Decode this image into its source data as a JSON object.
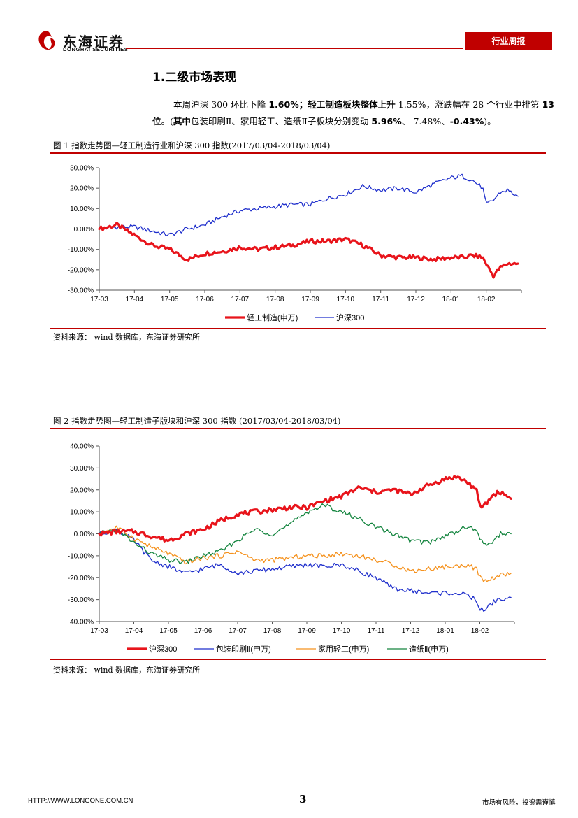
{
  "header": {
    "company_cn": "东海证券",
    "company_en": "DONGHAI SECURITIES",
    "report_type": "行业周报"
  },
  "section": {
    "title": "1.二级市场表现",
    "paragraph_parts": [
      {
        "text": "本周沪深 300 环比下降 ",
        "bold": false
      },
      {
        "text": "1.60%；轻工制造板块整体上升",
        "bold": true
      },
      {
        "text": " 1.55%，涨跌幅在 28 个行业中排第 ",
        "bold": false
      },
      {
        "text": "13 位",
        "bold": true
      },
      {
        "text": "。(",
        "bold": false
      },
      {
        "text": "其中",
        "bold": true
      },
      {
        "text": "包装印刷Ⅱ、家用轻工、造纸Ⅱ子板块分别变动 ",
        "bold": false
      },
      {
        "text": "5.96%",
        "bold": true
      },
      {
        "text": "、-7.48%、",
        "bold": false
      },
      {
        "text": "-0.43%",
        "bold": true
      },
      {
        "text": ")。",
        "bold": false
      }
    ]
  },
  "figure1": {
    "caption": "图 1  指数走势图—轻工制造行业和沪深 300 指数(2017/03/04-2018/03/04)",
    "source": "资料来源：  wind 数据库，东海证券研究所"
  },
  "figure2": {
    "caption": "图 2   指数走势图—轻工制造子版块和沪深 300 指数  (2017/03/04-2018/03/04)",
    "source": "资料来源：  wind 数据库，东海证券研究所"
  },
  "chart_data": [
    {
      "type": "line",
      "title": "",
      "xlabel": "",
      "ylabel": "",
      "x_tick_labels": [
        "17-03",
        "17-04",
        "17-05",
        "17-06",
        "17-07",
        "17-08",
        "17-09",
        "17-10",
        "17-11",
        "17-12",
        "18-01",
        "18-02"
      ],
      "y_tick_labels": [
        "30.00%",
        "20.00%",
        "10.00%",
        "0.00%",
        "-10.00%",
        "-20.00%",
        "-30.00%"
      ],
      "ylim": [
        -30,
        30
      ],
      "x_months": [
        0,
        0.5,
        1,
        1.5,
        2,
        2.5,
        3,
        3.5,
        4,
        4.5,
        5,
        5.5,
        6,
        6.5,
        7,
        7.5,
        8,
        8.5,
        9,
        9.5,
        10,
        10.3,
        10.6,
        10.9,
        11,
        11.2,
        11.4,
        11.6,
        11.9
      ],
      "series": [
        {
          "name": "轻工制造(申万)",
          "color": "#e8141b",
          "width": 3.2,
          "values": [
            0,
            2,
            -3,
            -8,
            -10,
            -15,
            -12,
            -11,
            -9,
            -10,
            -9,
            -8,
            -6,
            -6,
            -5,
            -8,
            -13,
            -14,
            -14,
            -15,
            -14,
            -14,
            -13,
            -14,
            -17,
            -23,
            -19,
            -17,
            -17
          ]
        },
        {
          "name": "沪深300",
          "color": "#1f2fcc",
          "width": 1.3,
          "values": [
            0,
            1,
            1,
            -1,
            -3,
            0,
            2,
            6,
            9,
            10,
            11,
            12,
            12,
            15,
            17,
            21,
            19,
            20,
            18,
            22,
            25,
            26,
            24,
            20,
            12,
            14,
            18,
            19,
            16
          ]
        }
      ],
      "legend": "bottom-center"
    },
    {
      "type": "line",
      "title": "",
      "xlabel": "",
      "ylabel": "",
      "x_tick_labels": [
        "17-03",
        "17-04",
        "17-05",
        "17-06",
        "17-07",
        "17-08",
        "17-09",
        "17-10",
        "17-11",
        "17-12",
        "18-01",
        "18-02"
      ],
      "y_tick_labels": [
        "40.00%",
        "30.00%",
        "20.00%",
        "10.00%",
        "0.00%",
        "-10.00%",
        "-20.00%",
        "-30.00%",
        "-40.00%"
      ],
      "ylim": [
        -40,
        40
      ],
      "x_months": [
        0,
        0.5,
        1,
        1.5,
        2,
        2.5,
        3,
        3.5,
        4,
        4.5,
        5,
        5.5,
        6,
        6.5,
        7,
        7.5,
        8,
        8.5,
        9,
        9.5,
        10,
        10.3,
        10.6,
        10.9,
        11,
        11.2,
        11.4,
        11.6,
        11.9
      ],
      "series": [
        {
          "name": "沪深300",
          "color": "#e8141b",
          "width": 3.2,
          "values": [
            0,
            1,
            1,
            -1,
            -3,
            0,
            2,
            6,
            9,
            10,
            11,
            12,
            12,
            15,
            17,
            21,
            19,
            20,
            18,
            22,
            25,
            26,
            24,
            20,
            12,
            14,
            18,
            19,
            16
          ]
        },
        {
          "name": "包装印刷Ⅱ(申万)",
          "color": "#1f2fcc",
          "width": 1.3,
          "values": [
            0,
            2,
            -3,
            -12,
            -15,
            -18,
            -16,
            -14,
            -18,
            -17,
            -16,
            -15,
            -14,
            -15,
            -14,
            -17,
            -20,
            -25,
            -26,
            -27,
            -27,
            -27,
            -28,
            -30,
            -35,
            -34,
            -31,
            -30,
            -29
          ]
        },
        {
          "name": "家用轻工(申万)",
          "color": "#f5921e",
          "width": 1.3,
          "values": [
            0,
            3,
            -2,
            -6,
            -9,
            -13,
            -11,
            -10,
            -8,
            -12,
            -12,
            -11,
            -10,
            -10,
            -9,
            -10,
            -12,
            -14,
            -17,
            -16,
            -15,
            -15,
            -14,
            -16,
            -20,
            -22,
            -20,
            -19,
            -18
          ]
        },
        {
          "name": "造纸Ⅱ(申万)",
          "color": "#14853f",
          "width": 1.3,
          "values": [
            0,
            2,
            -4,
            -9,
            -12,
            -13,
            -10,
            -8,
            -3,
            2,
            0,
            4,
            10,
            13,
            10,
            7,
            3,
            0,
            -3,
            -4,
            -1,
            1,
            3,
            2,
            -3,
            -5,
            -3,
            0,
            0
          ]
        }
      ],
      "legend": "bottom-center"
    }
  ],
  "footer": {
    "url": "HTTP://WWW.LONGONE.COM.CN",
    "page": "3",
    "risk": "市场有风险，投资需谨慎"
  }
}
